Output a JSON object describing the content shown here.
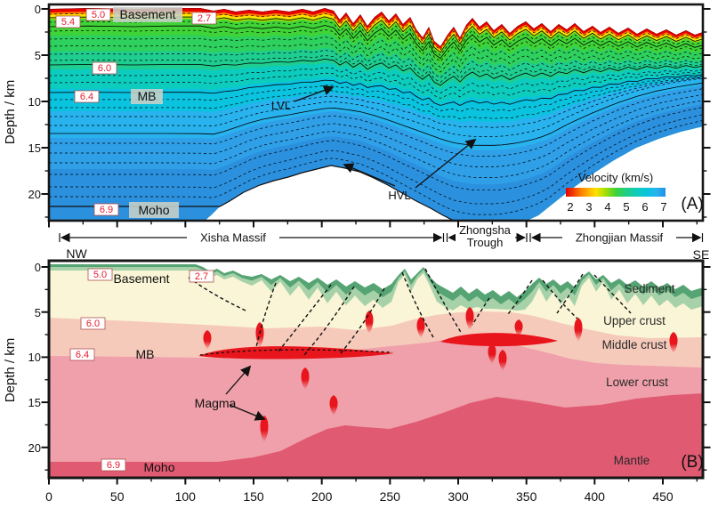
{
  "xAxis": {
    "ticks": [
      "0",
      "50",
      "100",
      "150",
      "200",
      "250",
      "300",
      "350",
      "400",
      "450"
    ]
  },
  "panelA": {
    "tag": "(A)",
    "yTitle": "Depth / km",
    "yTicks": [
      "0",
      "5",
      "10",
      "15",
      "20"
    ],
    "basement": "Basement",
    "mb": "MB",
    "moho": "Moho",
    "lvl": "LVL",
    "hvl": "HVL",
    "v27": "2.7",
    "v50": "5.0",
    "v54": "5.4",
    "v60": "6.0",
    "v64": "6.4",
    "v69": "6.9",
    "legendTitle": "Velocity (km/s)",
    "legendTicks": [
      "2",
      "3",
      "4",
      "5",
      "6",
      "7"
    ]
  },
  "header": {
    "nw": "NW",
    "se": "SE",
    "region1": "Xisha Massif",
    "region2a": "Zhongsha",
    "region2b": "Trough",
    "region3": "Zhongjian Massif"
  },
  "panelB": {
    "tag": "(B)",
    "yTitle": "Depth / km",
    "yTicks": [
      "0",
      "5",
      "10",
      "15",
      "20"
    ],
    "basement": "Basement",
    "mb": "MB",
    "moho": "Moho",
    "magma": "Magma",
    "sediment": "Sediment",
    "upperCrust": "Upper crust",
    "middleCrust": "Middle crust",
    "lowerCrust": "Lower crust",
    "mantle": "Mantle",
    "v27": "2.7",
    "v50": "5.0",
    "v60": "6.0",
    "v64": "6.4",
    "v69": "6.9"
  },
  "colors": {
    "contour_label_text": "#e8192c",
    "velocity_scale": [
      "#e60000",
      "#ff8400",
      "#ffe100",
      "#b5e000",
      "#3fd337",
      "#2ed05e",
      "#1ecd8f",
      "#0cccbd",
      "#0ac3df",
      "#28b2ee",
      "#2f9fe8",
      "#2b90de"
    ],
    "sediment_dark": "#56a473",
    "sediment_light": "#a7d2a9",
    "upper_crust": "#faf5d6",
    "middle_crust": "#f6cabb",
    "lower_crust": "#efa0aa",
    "mantle": "#e05a72",
    "magma": "#e8151c"
  }
}
